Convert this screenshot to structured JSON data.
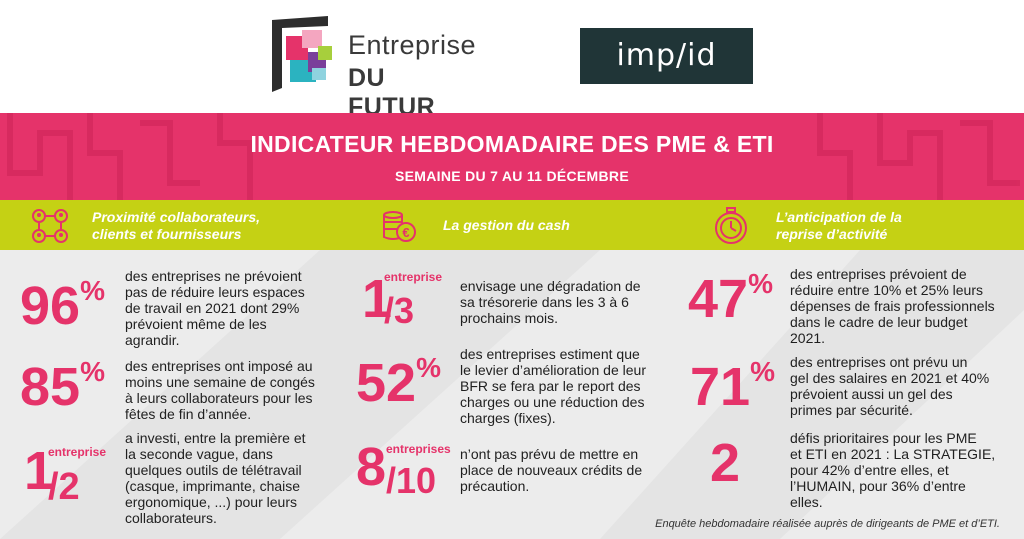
{
  "logos": {
    "edf_line1": "Entreprise",
    "edf_line2": "DU FUTUR",
    "implid": "imp/id"
  },
  "banner": {
    "title": "INDICATEUR HEBDOMADAIRE DES PME & ETI",
    "subtitle": "SEMAINE DU 7 AU 11 DÉCEMBRE"
  },
  "colors": {
    "pink": "#e5336a",
    "lime": "#c5d114",
    "dark": "#203537",
    "bg": "#ececec"
  },
  "categories": [
    {
      "icon": "network-people-icon",
      "line1": "Proximité collaborateurs,",
      "line2": "clients et fournisseurs"
    },
    {
      "icon": "coins-euro-icon",
      "line1": "La gestion du cash",
      "line2": ""
    },
    {
      "icon": "stopwatch-icon",
      "line1": "L’anticipation de la",
      "line2": "reprise d’activité"
    }
  ],
  "stats": {
    "c1": [
      {
        "num": "96",
        "suffix": "%",
        "lines": [
          "des entreprises ne prévoient",
          "pas de réduire leurs espaces",
          "de travail en 2021 dont 29%",
          "prévoient même de les",
          "agrandir."
        ]
      },
      {
        "num": "85",
        "suffix": "%",
        "lines": [
          "des entreprises ont imposé au",
          "moins une semaine de congés",
          "à leurs collaborateurs pour les",
          "fêtes de fin d’année."
        ]
      },
      {
        "num": "1",
        "denom": "/2",
        "unit": "entreprise",
        "lines": [
          "a investi, entre la première et",
          "la seconde vague, dans",
          "quelques outils de télétravail",
          "(casque, imprimante, chaise",
          "ergonomique, ...) pour leurs",
          "collaborateurs."
        ]
      }
    ],
    "c2": [
      {
        "num": "1",
        "denom": "/3",
        "unit": "entreprise",
        "lines": [
          "envisage une dégradation de",
          "sa trésorerie dans les 3 à 6",
          "prochains mois."
        ]
      },
      {
        "num": "52",
        "suffix": "%",
        "lines": [
          "des entreprises estiment que",
          "le levier d’amélioration de leur",
          "BFR se fera par le report des",
          "charges ou une réduction des",
          "charges (fixes)."
        ]
      },
      {
        "num": "8",
        "denom": "/10",
        "unit": "entreprises",
        "lines": [
          "n’ont pas prévu de mettre en",
          "place de nouveaux crédits de",
          "précaution."
        ]
      }
    ],
    "c3": [
      {
        "num": "47",
        "suffix": "%",
        "lines": [
          "des entreprises prévoient de",
          "réduire entre 10% et 25% leurs",
          "dépenses de frais professionnels",
          "dans le cadre de leur budget",
          "2021."
        ]
      },
      {
        "num": "71",
        "suffix": "%",
        "lines": [
          "des entreprises ont prévu un",
          "gel des salaires en 2021 et 40%",
          "prévoient aussi un gel des",
          "primes par sécurité."
        ]
      },
      {
        "num": "2",
        "lines": [
          "défis prioritaires pour les PME",
          "et ETI en 2021 : La STRATEGIE,",
          "pour 42% d’entre elles, et",
          "l’HUMAIN, pour 36% d’entre",
          "elles."
        ]
      }
    ]
  },
  "footnote": "Enquête hebdomadaire réalisée auprès de dirigeants de PME et d’ETI."
}
